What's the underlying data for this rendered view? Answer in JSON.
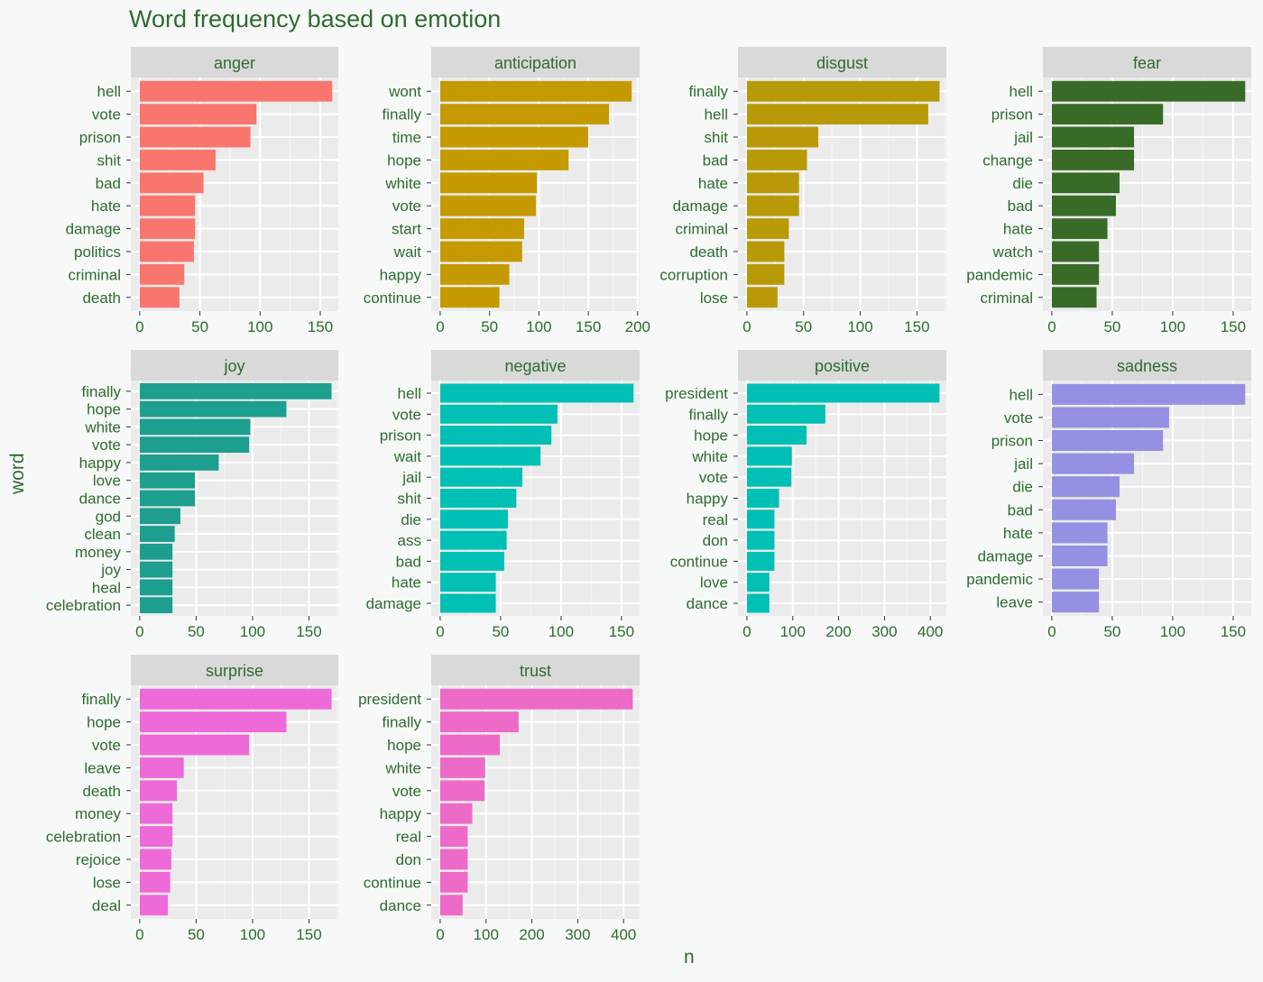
{
  "title": "Word frequency based on emotion",
  "xlabel": "n",
  "ylabel": "word",
  "chart_data": {
    "type": "bar",
    "orientation": "horizontal",
    "layout": "facet-wrap",
    "title": "Word frequency based on emotion",
    "xlabel": "n",
    "ylabel": "word",
    "grid": true,
    "panels": [
      {
        "name": "anger",
        "color": "#f8766d",
        "xlim": [
          0,
          165
        ],
        "ticks": [
          0,
          50,
          100,
          150
        ],
        "categories": [
          "hell",
          "vote",
          "prison",
          "shit",
          "bad",
          "hate",
          "damage",
          "politics",
          "criminal",
          "death"
        ],
        "values": [
          160,
          97,
          92,
          63,
          53,
          46,
          46,
          45,
          37,
          33
        ]
      },
      {
        "name": "anticipation",
        "color": "#c49a00",
        "xlim": [
          0,
          202
        ],
        "ticks": [
          0,
          50,
          100,
          150,
          200
        ],
        "categories": [
          "wont",
          "finally",
          "time",
          "hope",
          "white",
          "vote",
          "start",
          "wait",
          "happy",
          "continue"
        ],
        "values": [
          194,
          171,
          150,
          130,
          98,
          97,
          85,
          83,
          70,
          60
        ]
      },
      {
        "name": "disgust",
        "color": "#b89a08",
        "xlim": [
          0,
          176
        ],
        "ticks": [
          0,
          50,
          100,
          150
        ],
        "categories": [
          "finally",
          "hell",
          "shit",
          "bad",
          "hate",
          "damage",
          "criminal",
          "death",
          "corruption",
          "lose"
        ],
        "values": [
          170,
          160,
          63,
          53,
          46,
          46,
          37,
          33,
          33,
          27
        ]
      },
      {
        "name": "fear",
        "color": "#386b27",
        "xlim": [
          0,
          165
        ],
        "ticks": [
          0,
          50,
          100,
          150
        ],
        "categories": [
          "hell",
          "prison",
          "jail",
          "change",
          "die",
          "bad",
          "hate",
          "watch",
          "pandemic",
          "criminal"
        ],
        "values": [
          160,
          92,
          68,
          68,
          56,
          53,
          46,
          39,
          39,
          37
        ]
      },
      {
        "name": "joy",
        "color": "#1d9e8f",
        "xlim": [
          0,
          176
        ],
        "ticks": [
          0,
          50,
          100,
          150
        ],
        "categories": [
          "finally",
          "hope",
          "white",
          "vote",
          "happy",
          "love",
          "dance",
          "god",
          "clean",
          "money",
          "joy",
          "heal",
          "celebration"
        ],
        "values": [
          170,
          130,
          98,
          97,
          70,
          49,
          49,
          36,
          31,
          29,
          29,
          29,
          29
        ]
      },
      {
        "name": "negative",
        "color": "#00bfb4",
        "xlim": [
          0,
          165
        ],
        "ticks": [
          0,
          50,
          100,
          150
        ],
        "categories": [
          "hell",
          "vote",
          "prison",
          "wait",
          "jail",
          "shit",
          "die",
          "ass",
          "bad",
          "hate",
          "damage"
        ],
        "values": [
          160,
          97,
          92,
          83,
          68,
          63,
          56,
          55,
          53,
          46,
          46
        ]
      },
      {
        "name": "positive",
        "color": "#00bfb4",
        "xlim": [
          0,
          435
        ],
        "ticks": [
          0,
          100,
          200,
          300,
          400
        ],
        "categories": [
          "president",
          "finally",
          "hope",
          "white",
          "vote",
          "happy",
          "real",
          "don",
          "continue",
          "love",
          "dance"
        ],
        "values": [
          420,
          171,
          130,
          98,
          97,
          70,
          60,
          60,
          60,
          49,
          49
        ]
      },
      {
        "name": "sadness",
        "color": "#9590e2",
        "xlim": [
          0,
          165
        ],
        "ticks": [
          0,
          50,
          100,
          150
        ],
        "categories": [
          "hell",
          "vote",
          "prison",
          "jail",
          "die",
          "bad",
          "hate",
          "damage",
          "pandemic",
          "leave"
        ],
        "values": [
          160,
          97,
          92,
          68,
          56,
          53,
          46,
          46,
          39,
          39
        ]
      },
      {
        "name": "surprise",
        "color": "#ee6ad8",
        "xlim": [
          0,
          176
        ],
        "ticks": [
          0,
          50,
          100,
          150
        ],
        "categories": [
          "finally",
          "hope",
          "vote",
          "leave",
          "death",
          "money",
          "celebration",
          "rejoice",
          "lose",
          "deal"
        ],
        "values": [
          170,
          130,
          97,
          39,
          33,
          29,
          29,
          28,
          27,
          25
        ]
      },
      {
        "name": "trust",
        "color": "#ee6ac8",
        "xlim": [
          0,
          435
        ],
        "ticks": [
          0,
          100,
          200,
          300,
          400
        ],
        "categories": [
          "president",
          "finally",
          "hope",
          "white",
          "vote",
          "happy",
          "real",
          "don",
          "continue",
          "dance"
        ],
        "values": [
          420,
          171,
          130,
          98,
          97,
          70,
          60,
          60,
          60,
          49
        ]
      }
    ]
  }
}
